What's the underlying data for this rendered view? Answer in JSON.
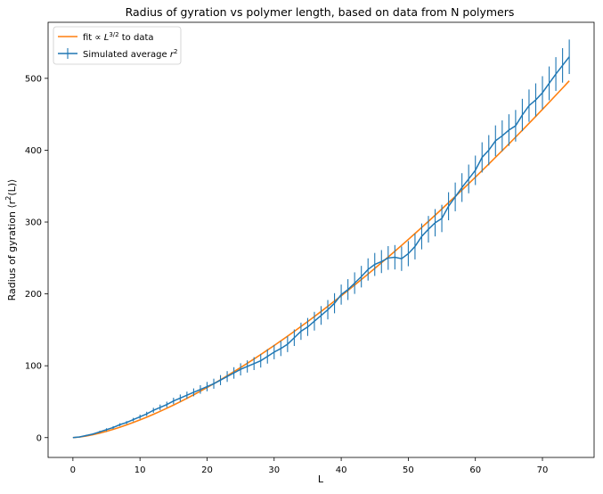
{
  "chart_data": {
    "type": "line",
    "title": "Radius of gyration vs polymer length, based on data from N polymers",
    "xlabel": "L",
    "ylabel": "Radius of gyration ⟨r²(L)⟩",
    "xlim": [
      -3.7,
      77.7
    ],
    "ylim": [
      -27.6,
      578
    ],
    "xticks": [
      0,
      10,
      20,
      30,
      40,
      50,
      60,
      70
    ],
    "yticks": [
      0,
      100,
      200,
      300,
      400,
      500
    ],
    "grid": false,
    "legend_position": "top-left",
    "series": [
      {
        "name": "fit ∝ L^{3/2} to data",
        "type": "line",
        "color": "#ff7f0e",
        "coefficient": 0.78,
        "exponent": 1.5,
        "x": [
          0,
          1,
          2,
          3,
          4,
          5,
          6,
          7,
          8,
          9,
          10,
          11,
          12,
          13,
          14,
          15,
          16,
          17,
          18,
          19,
          20,
          21,
          22,
          23,
          24,
          25,
          26,
          27,
          28,
          29,
          30,
          31,
          32,
          33,
          34,
          35,
          36,
          37,
          38,
          39,
          40,
          41,
          42,
          43,
          44,
          45,
          46,
          47,
          48,
          49,
          50,
          51,
          52,
          53,
          54,
          55,
          56,
          57,
          58,
          59,
          60,
          61,
          62,
          63,
          64,
          65,
          66,
          67,
          68,
          69,
          70,
          71,
          72,
          73,
          74
        ]
      },
      {
        "name": "Simulated average r²",
        "type": "errorbar",
        "color": "#1f77b4",
        "x": [
          0,
          1,
          2,
          3,
          4,
          5,
          6,
          7,
          8,
          9,
          10,
          11,
          12,
          13,
          14,
          15,
          16,
          17,
          18,
          19,
          20,
          21,
          22,
          23,
          24,
          25,
          26,
          27,
          28,
          29,
          30,
          31,
          32,
          33,
          34,
          35,
          36,
          37,
          38,
          39,
          40,
          41,
          42,
          43,
          44,
          45,
          46,
          47,
          48,
          49,
          50,
          51,
          52,
          53,
          54,
          55,
          56,
          57,
          58,
          59,
          60,
          61,
          62,
          63,
          64,
          65,
          66,
          67,
          68,
          69,
          70,
          71,
          72,
          73,
          74
        ],
        "y": [
          0,
          1,
          3,
          5,
          8,
          11,
          14,
          18,
          21,
          25,
          29,
          33,
          38,
          42,
          46,
          51,
          55,
          59,
          63,
          67,
          71,
          75,
          80,
          85,
          90,
          95,
          99,
          103,
          107,
          113,
          119,
          124,
          130,
          139,
          148,
          154,
          162,
          170,
          178,
          187,
          199,
          206,
          215,
          224,
          234,
          241,
          245,
          250,
          251,
          249,
          256,
          266,
          280,
          290,
          299,
          305,
          322,
          335,
          348,
          360,
          372,
          390,
          400,
          413,
          420,
          428,
          434,
          449,
          462,
          470,
          480,
          493,
          506,
          518,
          530
        ],
        "err": [
          0,
          0.5,
          1,
          1,
          1.5,
          2,
          2,
          2,
          2,
          2.5,
          3,
          3,
          3.5,
          4,
          4,
          4.5,
          5,
          5,
          5.5,
          6,
          6.5,
          7,
          7,
          7.5,
          8,
          8.5,
          8.5,
          9,
          9.5,
          10,
          10,
          10.5,
          11,
          11.5,
          12,
          12.5,
          13,
          13,
          13.5,
          14,
          14,
          14.5,
          15,
          15,
          15.5,
          16,
          16,
          16.5,
          17,
          17,
          17.5,
          18,
          18,
          18.5,
          19,
          19,
          19.5,
          20,
          20,
          20,
          20.5,
          21,
          21,
          21.5,
          21.5,
          22,
          22,
          22.5,
          22.5,
          23,
          23,
          23.5,
          23.5,
          24,
          24
        ]
      }
    ]
  }
}
